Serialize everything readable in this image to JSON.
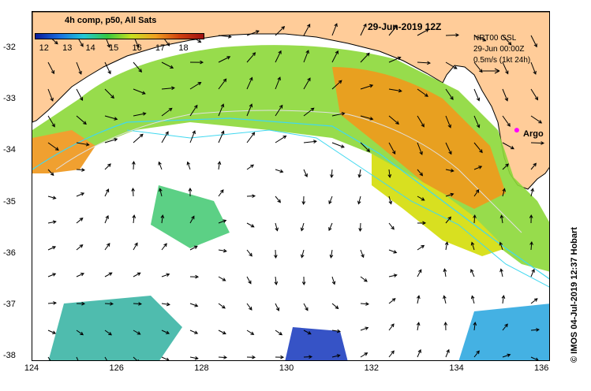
{
  "colorbar": {
    "title": "4h comp, p50, All Sats",
    "ticks": [
      "12",
      "13",
      "14",
      "15",
      "16",
      "17",
      "18"
    ],
    "range": [
      11.6,
      18.9
    ],
    "colors": [
      "#0a1a9a",
      "#1a6ee0",
      "#22c8d8",
      "#38c840",
      "#c8e020",
      "#f0a020",
      "#d04010",
      "#a01010"
    ]
  },
  "map_title": "29-Jun-2019 12Z",
  "info": {
    "line1": "NRT00 GSL",
    "line2": "29-Jun 00:00Z",
    "line3": "0.5m/s (1kt 24h)"
  },
  "argo": {
    "label": "Argo",
    "lon": 135.4,
    "lat": -33.6,
    "color": "#ff00ff"
  },
  "credit": "© IMOS 04-Jul-2019 12:37 Hobart",
  "axes": {
    "x_ticks": [
      "124",
      "126",
      "128",
      "130",
      "132",
      "134",
      "136"
    ],
    "y_ticks": [
      "-32",
      "-33",
      "-34",
      "-35",
      "-36",
      "-37",
      "-38"
    ],
    "lon_range": [
      124,
      136.2
    ],
    "lat_range": [
      -38.1,
      -31.3
    ]
  },
  "colors": {
    "land": "#ffcc99",
    "coast": "#000000",
    "contour": "#40d8f0",
    "isobath_light": "#e0e0e0"
  }
}
